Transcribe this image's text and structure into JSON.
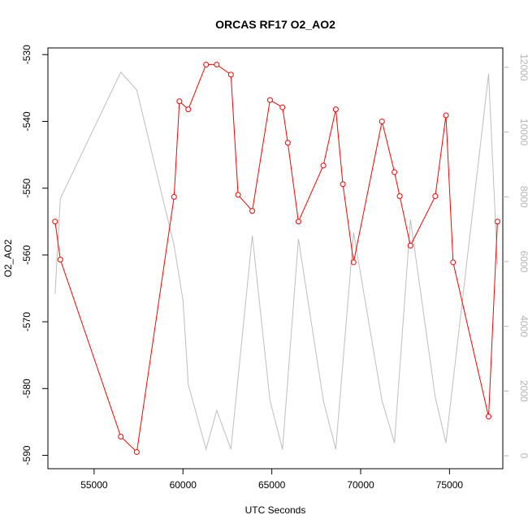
{
  "chart_data": {
    "type": "line",
    "title": "ORCAS RF17 O2_AO2",
    "xlabel": "UTC Seconds",
    "ylabel": "O2_AO2",
    "xlim": [
      52400,
      78000
    ],
    "ylim": [
      -592,
      -529
    ],
    "y2lim": [
      -400,
      12600
    ],
    "x_ticks": [
      55000,
      60000,
      65000,
      70000,
      75000
    ],
    "y_ticks": [
      -530,
      -540,
      -550,
      -560,
      -570,
      -580,
      -590
    ],
    "y2_ticks": [
      0,
      2000,
      4000,
      6000,
      8000,
      10000,
      12000
    ],
    "grid": false,
    "series": [
      {
        "color": "#ff0000",
        "marker": "open-circle",
        "axis": "left",
        "x": [
          52800,
          53100,
          56500,
          57400,
          59500,
          59800,
          60300,
          61300,
          61900,
          62700,
          63100,
          63900,
          64900,
          65600,
          65900,
          66500,
          67900,
          68600,
          69000,
          69600,
          71200,
          71900,
          72200,
          72800,
          74200,
          74800,
          75200,
          77200,
          77700
        ],
        "y": [
          -555,
          -560.7,
          -587.2,
          -589.5,
          -551.3,
          -537,
          -538.2,
          -531.5,
          -531.5,
          -533,
          -551,
          -553.4,
          -536.8,
          -537.9,
          -543.2,
          -555,
          -546.6,
          -538.2,
          -549.4,
          -561.1,
          -540,
          -547.6,
          -551.2,
          -558.6,
          -551.2,
          -539.1,
          -561.1,
          -584.2,
          -555
        ]
      },
      {
        "color": "#bebebe",
        "marker": "none",
        "axis": "right",
        "x": [
          52800,
          53100,
          56500,
          57400,
          59500,
          60000,
          60300,
          61300,
          61900,
          62700,
          63900,
          64900,
          65600,
          66500,
          67900,
          68600,
          69600,
          71200,
          71900,
          72800,
          74200,
          74800,
          77200,
          77700
        ],
        "y": [
          5000,
          7950,
          11850,
          11300,
          6500,
          4800,
          2200,
          200,
          1400,
          200,
          6800,
          1700,
          200,
          6700,
          1700,
          200,
          6900,
          1700,
          400,
          7300,
          1800,
          400,
          11800,
          5900
        ]
      }
    ]
  }
}
